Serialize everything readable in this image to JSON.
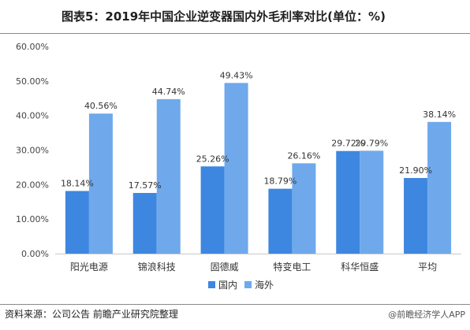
{
  "title": "图表5：2019年中国企业逆变器国内外毛利率对比(单位：%)",
  "source": "资料来源：公司公告   前瞻产业研究院整理",
  "brand": "@前瞻经济学人APP",
  "colors": {
    "domestic": "#3d87e0",
    "overseas": "#6fa9ec",
    "axis": "#c8c8c8"
  },
  "chart_data": {
    "type": "bar",
    "categories": [
      "阳光电源",
      "锦浪科技",
      "固德威",
      "特变电工",
      "科华恒盛",
      "平均"
    ],
    "series": [
      {
        "name": "国内",
        "values": [
          18.14,
          17.57,
          25.26,
          18.79,
          29.72,
          21.9
        ],
        "labels": [
          "18.14%",
          "17.57%",
          "25.26%",
          "18.79%",
          "29.72%",
          "21.90%"
        ]
      },
      {
        "name": "海外",
        "values": [
          40.56,
          44.74,
          49.43,
          26.16,
          29.79,
          38.14
        ],
        "labels": [
          "40.56%",
          "44.74%",
          "49.43%",
          "26.16%",
          "29.79%",
          "38.14%"
        ]
      }
    ],
    "yticks": [
      "0.00%",
      "10.00%",
      "20.00%",
      "30.00%",
      "40.00%",
      "50.00%",
      "60.00%"
    ],
    "ylim": [
      0,
      60
    ],
    "legend": "bottom"
  }
}
